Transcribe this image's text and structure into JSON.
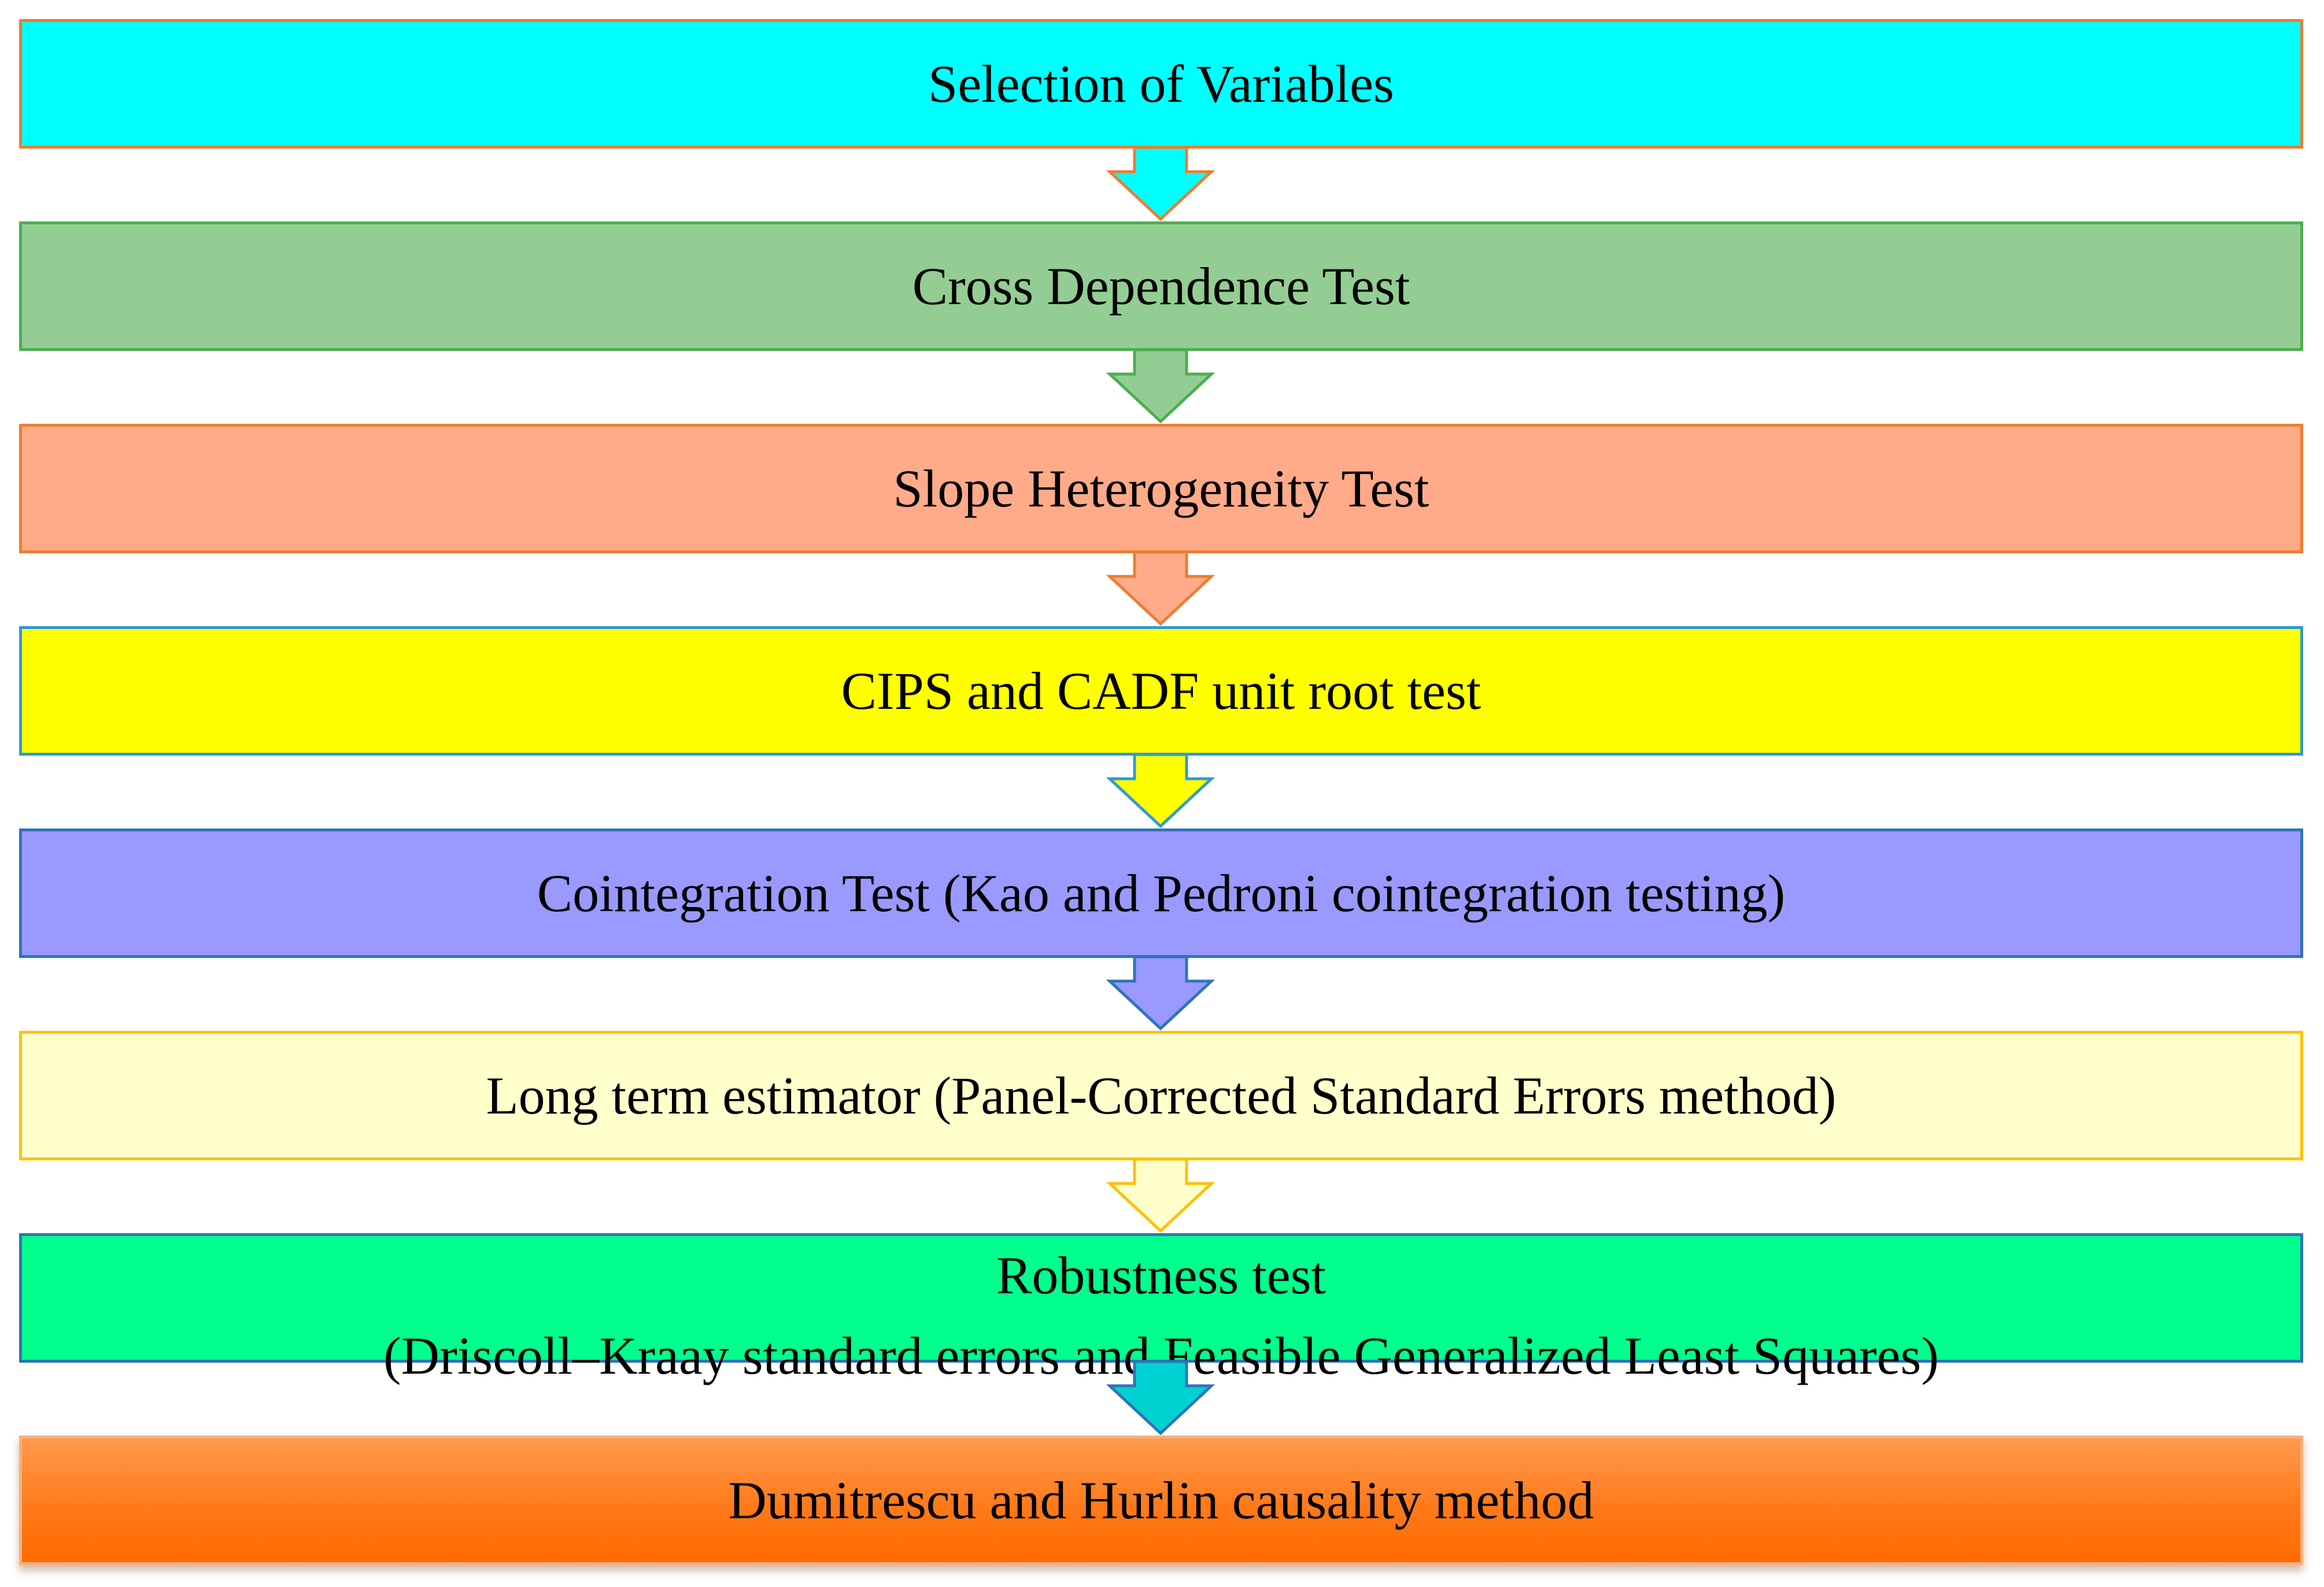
{
  "steps": [
    {
      "label": "Selection of Variables",
      "fill": "#00FFFF",
      "border": "#ED7D31"
    },
    {
      "label": "Cross Dependence Test",
      "fill": "#93CD93",
      "border": "#4CAF50"
    },
    {
      "label": "Slope Heterogeneity Test",
      "fill": "#FFAB8A",
      "border": "#ED7D31"
    },
    {
      "label": "CIPS and CADF unit root test",
      "fill": "#FFFF00",
      "border": "#2E9BD6"
    },
    {
      "label": "Cointegration Test (Kao and Pedroni cointegration testing)",
      "fill": "#9999FF",
      "border": "#2E75B6"
    },
    {
      "label": "Long term estimator (Panel-Corrected Standard Errors method)",
      "fill": "#FFFFCC",
      "border": "#FFC000"
    },
    {
      "label_line1": "Robustness test",
      "label_line2": "(Driscoll–Kraay standard errors and Feasible Generalized Least Squares)",
      "fill": "#00FF8C",
      "border": "#2E75B6"
    },
    {
      "label": "Dumitrescu and Hurlin causality method",
      "fill": "#FF7A1A",
      "border": "#F4B183"
    }
  ],
  "arrows": [
    {
      "fill": "#00FFFF",
      "stroke": "#ED7D31"
    },
    {
      "fill": "#93CD93",
      "stroke": "#4CAF50"
    },
    {
      "fill": "#FFAB8A",
      "stroke": "#ED7D31"
    },
    {
      "fill": "#FFFF00",
      "stroke": "#2E9BD6"
    },
    {
      "fill": "#9999FF",
      "stroke": "#2E75B6"
    },
    {
      "fill": "#FFFFCC",
      "stroke": "#FFC000"
    },
    {
      "fill": "#00D2D2",
      "stroke": "#2E75B6"
    }
  ]
}
